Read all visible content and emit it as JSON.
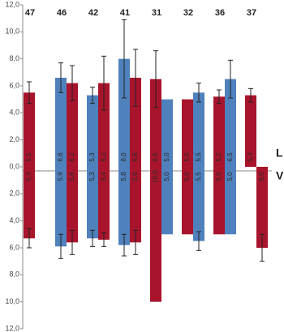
{
  "chart_data": {
    "type": "bar",
    "categories": [
      "47",
      "46",
      "42",
      "41",
      "31",
      "32",
      "36",
      "37"
    ],
    "ylim": [
      -12,
      12
    ],
    "yticks": [
      {
        "value": 12,
        "label": "12,0"
      },
      {
        "value": 10,
        "label": "10,0"
      },
      {
        "value": 8,
        "label": "8,0"
      },
      {
        "value": 6,
        "label": "6,0"
      },
      {
        "value": 4,
        "label": "4,0"
      },
      {
        "value": 2,
        "label": "2,0"
      },
      {
        "value": 0,
        "label": "0,0"
      },
      {
        "value": -2,
        "label": "2,0"
      },
      {
        "value": -4,
        "label": "4,0"
      },
      {
        "value": -6,
        "label": "6,0"
      },
      {
        "value": -8,
        "label": "8,0"
      },
      {
        "value": -10,
        "label": "10,0"
      },
      {
        "value": -12,
        "label": "12,0"
      }
    ],
    "series": [
      {
        "color": "#a8142c",
        "direction": "up",
        "values": [
          5.5,
          6.2,
          6.2,
          6.6,
          6.5,
          5.0,
          5.2,
          5.3
        ],
        "value_labels": [
          "5,5",
          "6,2",
          "6,2",
          "6,6",
          "6,5",
          "5,0",
          "5,2",
          "5,3"
        ],
        "errors": [
          0.8,
          1.3,
          2.0,
          2.1,
          2.1,
          null,
          0.5,
          0.5
        ]
      },
      {
        "color": "#4f81bd",
        "direction": "up",
        "values": [
          null,
          6.6,
          5.3,
          8.0,
          5.0,
          5.5,
          6.5,
          null
        ],
        "value_labels": [
          null,
          "6,6",
          "5,3",
          "8,0",
          "5,0",
          "5,5",
          "6,5",
          null
        ],
        "errors": [
          null,
          1.1,
          0.6,
          2.9,
          null,
          0.7,
          1.4,
          null
        ]
      },
      {
        "color": "#a8142c",
        "direction": "down",
        "values": [
          5.3,
          5.6,
          5.4,
          5.6,
          10.0,
          5.0,
          5.0,
          6.0
        ],
        "value_labels": [
          "5,3",
          "5,6",
          "5,4",
          "5,6",
          "10,0",
          "5,0",
          "5,0",
          "6,0"
        ],
        "errors": [
          0.7,
          0.9,
          0.5,
          0.9,
          null,
          null,
          null,
          1.0
        ]
      },
      {
        "color": "#4f81bd",
        "direction": "down",
        "values": [
          null,
          5.9,
          5.3,
          5.8,
          5.0,
          5.5,
          5.0,
          null
        ],
        "value_labels": [
          null,
          "5,9",
          "5,3",
          "5,8",
          "5,0",
          "5,5",
          "5,0",
          null
        ],
        "errors": [
          null,
          0.9,
          0.6,
          0.8,
          null,
          0.7,
          null,
          null
        ]
      }
    ],
    "annotations": [
      "L",
      "V"
    ]
  }
}
